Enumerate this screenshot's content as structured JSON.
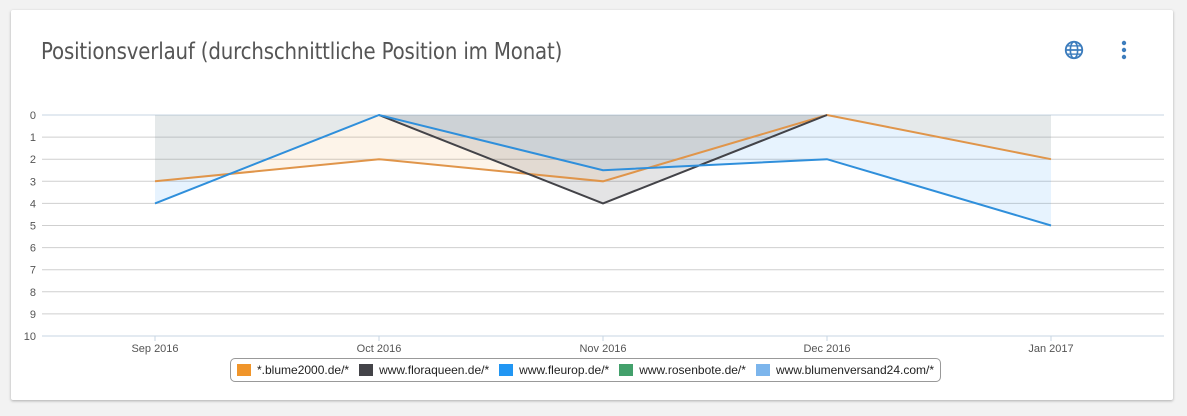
{
  "card": {
    "title": "Positionsverlauf (durchschnittliche Position im Monat)"
  },
  "toolbar": {
    "globe_icon": "globe-icon",
    "more_icon": "more-vert-icon"
  },
  "chart_data": {
    "type": "area",
    "title": "Positionsverlauf (durchschnittliche Position im Monat)",
    "categories": [
      "Sep 2016",
      "Oct 2016",
      "Nov 2016",
      "Dec 2016",
      "Jan 2017"
    ],
    "ylim": [
      0,
      10
    ],
    "yticks": [
      "0",
      "1",
      "2",
      "3",
      "4",
      "5",
      "6",
      "7",
      "8",
      "9",
      "10"
    ],
    "y_inverted": true,
    "grid": true,
    "legend_position": "bottom",
    "series": [
      {
        "name": "*.blume2000.de/*",
        "color": "#f0952a",
        "line_color": "#e0954a",
        "values": [
          3,
          2,
          3,
          0,
          2
        ]
      },
      {
        "name": "www.floraqueen.de/*",
        "color": "#434348",
        "line_color": "#434348",
        "values": [
          null,
          0,
          4,
          0,
          null
        ]
      },
      {
        "name": "www.fleurop.de/*",
        "color": "#2196f3",
        "line_color": "#2f8fdb",
        "values": [
          4,
          0,
          2.5,
          2,
          5
        ]
      },
      {
        "name": "www.rosenbote.de/*",
        "color": "#43a06b",
        "line_color": "#43a06b",
        "values": [
          null,
          null,
          null,
          null,
          null
        ]
      },
      {
        "name": "www.blumenversand24.com/*",
        "color": "#7cb5ec",
        "line_color": "#7cb5ec",
        "values": [
          null,
          null,
          null,
          null,
          null
        ]
      }
    ]
  }
}
